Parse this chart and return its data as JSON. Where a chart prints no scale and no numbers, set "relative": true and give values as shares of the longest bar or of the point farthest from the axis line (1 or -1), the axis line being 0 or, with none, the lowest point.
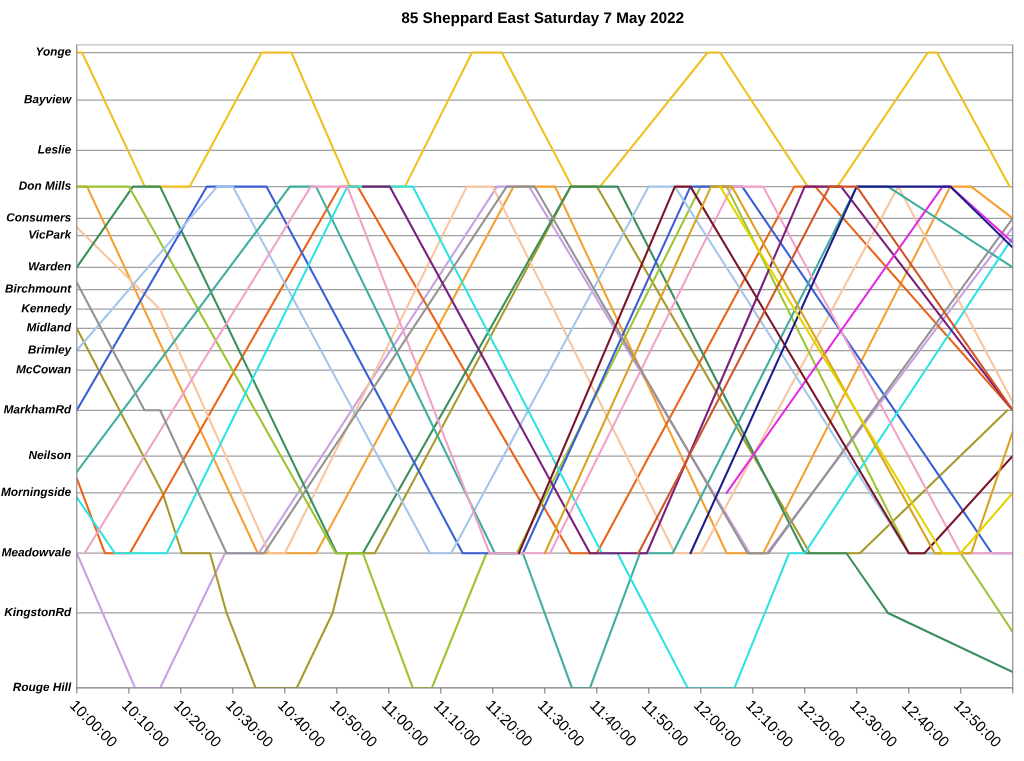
{
  "chart_data": {
    "type": "line",
    "title": "85 Sheppard East Saturday 7 May 2022",
    "relative": true,
    "xlim": [
      10,
      13.0
    ],
    "xticks": [
      {
        "value": 10,
        "label": "10:00:00"
      },
      {
        "value": 10.1667,
        "label": "10:10:00"
      },
      {
        "value": 10.3333,
        "label": "10:20:00"
      },
      {
        "value": 10.5,
        "label": "10:30:00"
      },
      {
        "value": 10.6667,
        "label": "10:40:00"
      },
      {
        "value": 10.8333,
        "label": "10:50:00"
      },
      {
        "value": 11,
        "label": "11:00:00"
      },
      {
        "value": 11.1667,
        "label": "11:10:00"
      },
      {
        "value": 11.3333,
        "label": "11:20:00"
      },
      {
        "value": 11.5,
        "label": "11:30:00"
      },
      {
        "value": 11.6667,
        "label": "11:40:00"
      },
      {
        "value": 11.8333,
        "label": "11:50:00"
      },
      {
        "value": 12,
        "label": "12:00:00"
      },
      {
        "value": 12.1667,
        "label": "12:10:00"
      },
      {
        "value": 12.3333,
        "label": "12:20:00"
      },
      {
        "value": 12.5,
        "label": "12:30:00"
      },
      {
        "value": 12.6667,
        "label": "12:40:00"
      },
      {
        "value": 12.8333,
        "label": "12:50:00"
      },
      {
        "value": 13.0,
        "label": null
      }
    ],
    "ref_lines": [
      {
        "axis": "y",
        "value": 1,
        "label": "Yonge"
      },
      {
        "axis": "y",
        "value": 0.925,
        "label": "Bayview"
      },
      {
        "axis": "y",
        "value": 0.846,
        "label": "Leslie"
      },
      {
        "axis": "y",
        "value": 0.789,
        "label": "Don Mills"
      },
      {
        "axis": "y",
        "value": 0.739,
        "label": "Consumers"
      },
      {
        "axis": "y",
        "value": 0.712,
        "label": "VicPark"
      },
      {
        "axis": "y",
        "value": 0.662,
        "label": "Warden"
      },
      {
        "axis": "y",
        "value": 0.627,
        "label": "Birchmount"
      },
      {
        "axis": "y",
        "value": 0.596,
        "label": "Kennedy"
      },
      {
        "axis": "y",
        "value": 0.566,
        "label": "Midland"
      },
      {
        "axis": "y",
        "value": 0.531,
        "label": "Brimley"
      },
      {
        "axis": "y",
        "value": 0.5,
        "label": "McCowan"
      },
      {
        "axis": "y",
        "value": 0.437,
        "label": "MarkhamRd"
      },
      {
        "axis": "y",
        "value": 0.365,
        "label": "Neilson"
      },
      {
        "axis": "y",
        "value": 0.307,
        "label": "Morningside"
      },
      {
        "axis": "y",
        "value": 0.212,
        "label": "Meadowvale"
      },
      {
        "axis": "y",
        "value": 0.118,
        "label": "KingstonRd"
      },
      {
        "axis": "y",
        "value": 0,
        "label": "Rouge Hill"
      }
    ],
    "series": [
      {
        "color": "#f0c020",
        "x": [
          10,
          10.017,
          10.218,
          10.362,
          10.593,
          10.688,
          10.875,
          11.052,
          11.267,
          11.362,
          11.587,
          11.677,
          12.022,
          12.062,
          12.343,
          12.438,
          12.728,
          12.757,
          12.99
        ],
        "values": [
          1,
          1,
          0.789,
          0.789,
          1,
          1,
          0.789,
          0.789,
          1,
          1,
          0.789,
          0.789,
          1,
          1,
          0.789,
          0.789,
          1,
          1,
          0.789
        ]
      },
      {
        "color": "#c8a0e0",
        "x": [
          10,
          10.187,
          10.267,
          10.475,
          10.583,
          11.347,
          11.45,
          12.157,
          12.212,
          13.0
        ],
        "values": [
          0.212,
          0,
          0,
          0.212,
          0.212,
          0.789,
          0.789,
          0.212,
          0.212,
          0.725
        ]
      },
      {
        "color": "#a89a2a",
        "x": [
          10,
          10.275,
          10.337,
          10.427,
          10.48,
          10.573,
          10.705,
          10.82,
          10.868,
          10.955,
          11.583,
          11.667,
          12.35,
          12.51,
          12.983
        ],
        "values": [
          0.566,
          0.307,
          0.212,
          0.212,
          0.118,
          0,
          0,
          0.118,
          0.212,
          0.212,
          0.789,
          0.789,
          0.212,
          0.212,
          0.437
        ]
      },
      {
        "color": "#f5a030",
        "x": [
          10,
          10.033,
          10.58,
          10.767,
          11.4,
          11.533,
          12.083,
          12.2,
          12.8,
          12.867,
          13.0
        ],
        "values": [
          0.789,
          0.789,
          0.212,
          0.212,
          0.789,
          0.789,
          0.212,
          0.212,
          0.789,
          0.789,
          0.739
        ]
      },
      {
        "color": "#e8651a",
        "x": [
          10,
          10.09,
          10.17,
          10.843,
          10.9,
          11.583,
          11.667,
          12.3,
          12.367,
          13.0
        ],
        "values": [
          0.33,
          0.212,
          0.212,
          0.789,
          0.789,
          0.212,
          0.212,
          0.789,
          0.789,
          0.437
        ]
      },
      {
        "color": "#f7c59f",
        "x": [
          10,
          10.267,
          10.617,
          10.667,
          11.25,
          11.333,
          11.917,
          12.0,
          12.633,
          13.0
        ],
        "values": [
          0.725,
          0.596,
          0.212,
          0.212,
          0.789,
          0.789,
          0.212,
          0.212,
          0.789,
          0.45
        ]
      },
      {
        "color": "#3a8f5c",
        "x": [
          10,
          10.18,
          10.267,
          10.833,
          10.917,
          11.583,
          11.733,
          12.333,
          12.467,
          12.6,
          13.0
        ],
        "values": [
          0.662,
          0.789,
          0.789,
          0.212,
          0.212,
          0.789,
          0.789,
          0.212,
          0.212,
          0.118,
          0.025
        ]
      },
      {
        "color": "#9dc431",
        "x": [
          10,
          10.167,
          10.83,
          10.917,
          11.077,
          11.138,
          11.313,
          11.41,
          12.0,
          12.083,
          12.667,
          12.833,
          13.0
        ],
        "values": [
          0.789,
          0.789,
          0.212,
          0.212,
          0,
          0,
          0.212,
          0.212,
          0.789,
          0.789,
          0.212,
          0.212,
          0.088
        ]
      },
      {
        "color": "#3b5fd4",
        "x": [
          10,
          10.417,
          10.608,
          11.237,
          11.43,
          11.967,
          12.133,
          12.933,
          13.0
        ],
        "values": [
          0.437,
          0.789,
          0.789,
          0.212,
          0.212,
          0.789,
          0.789,
          0.212,
          0.212
        ]
      },
      {
        "color": "#a3c6ea",
        "x": [
          10,
          10.45,
          10.5,
          11.132,
          11.2,
          11.833,
          11.917,
          12.667,
          13.0
        ],
        "values": [
          0.531,
          0.789,
          0.789,
          0.212,
          0.212,
          0.789,
          0.789,
          0.212,
          0.212
        ]
      },
      {
        "color": "#3fae9e",
        "x": [
          10,
          10.683,
          10.767,
          11.34,
          11.43,
          11.587,
          11.645,
          11.805,
          11.91,
          12.5,
          12.6,
          13.0
        ],
        "values": [
          0.34,
          0.789,
          0.789,
          0.212,
          0.212,
          0,
          0,
          0.212,
          0.212,
          0.789,
          0.789,
          0.662
        ]
      },
      {
        "color": "#2fe3e3",
        "x": [
          10,
          10.122,
          10.288,
          10.867,
          11.077,
          11.683,
          11.733,
          11.958,
          12.108,
          12.283,
          12.333,
          13.0
        ],
        "values": [
          0.3,
          0.212,
          0.212,
          0.789,
          0.789,
          0.212,
          0.212,
          0,
          0,
          0.212,
          0.212,
          0.709
        ]
      },
      {
        "color": "#f2a2c9",
        "x": [
          10.025,
          10.75,
          10.867,
          11.323,
          11.517,
          12.1,
          12.2,
          12.833,
          13.0
        ],
        "values": [
          0.212,
          0.789,
          0.789,
          0.212,
          0.212,
          0.789,
          0.789,
          0.212,
          0.212
        ]
      },
      {
        "color": "#939393",
        "x": [
          10,
          10.217,
          10.267,
          10.48,
          10.6,
          11.378,
          11.467,
          12.15,
          12.217,
          13.0
        ],
        "values": [
          0.638,
          0.437,
          0.437,
          0.212,
          0.212,
          0.789,
          0.789,
          0.212,
          0.212,
          0.739
        ]
      },
      {
        "color": "#7b1f7b",
        "x": [
          10.917,
          11.003,
          11.645,
          11.827,
          12.333,
          12.45,
          13.0
        ],
        "values": [
          0.789,
          0.789,
          0.212,
          0.212,
          0.789,
          0.789,
          0.437
        ]
      },
      {
        "color": "#e32de3",
        "x": [
          12.083,
          12.775,
          12.8,
          13.0
        ],
        "values": [
          0.307,
          0.789,
          0.789,
          0.701
        ]
      },
      {
        "color": "#7a1428",
        "x": [
          11.417,
          11.917,
          11.967,
          12.667,
          12.717,
          13.0
        ],
        "values": [
          0.212,
          0.789,
          0.789,
          0.212,
          0.212,
          0.365
        ]
      },
      {
        "color": "#1c1c8c",
        "x": [
          11.967,
          12.5,
          12.8,
          13.0
        ],
        "values": [
          0.212,
          0.789,
          0.789,
          0.693
        ]
      },
      {
        "color": "#d9a21f",
        "x": [
          11.5,
          12.033,
          12.1,
          12.75,
          12.867,
          13.0
        ],
        "values": [
          0.212,
          0.789,
          0.789,
          0.212,
          0.212,
          0.403
        ]
      },
      {
        "color": "#e3d400",
        "x": [
          12.062,
          12.775,
          12.833,
          13.0
        ],
        "values": [
          0.789,
          0.212,
          0.212,
          0.307
        ]
      },
      {
        "color": "#d2552a",
        "x": [
          11.8,
          12.413,
          12.5,
          13.0
        ],
        "values": [
          0.212,
          0.789,
          0.789,
          0.437
        ]
      }
    ]
  }
}
